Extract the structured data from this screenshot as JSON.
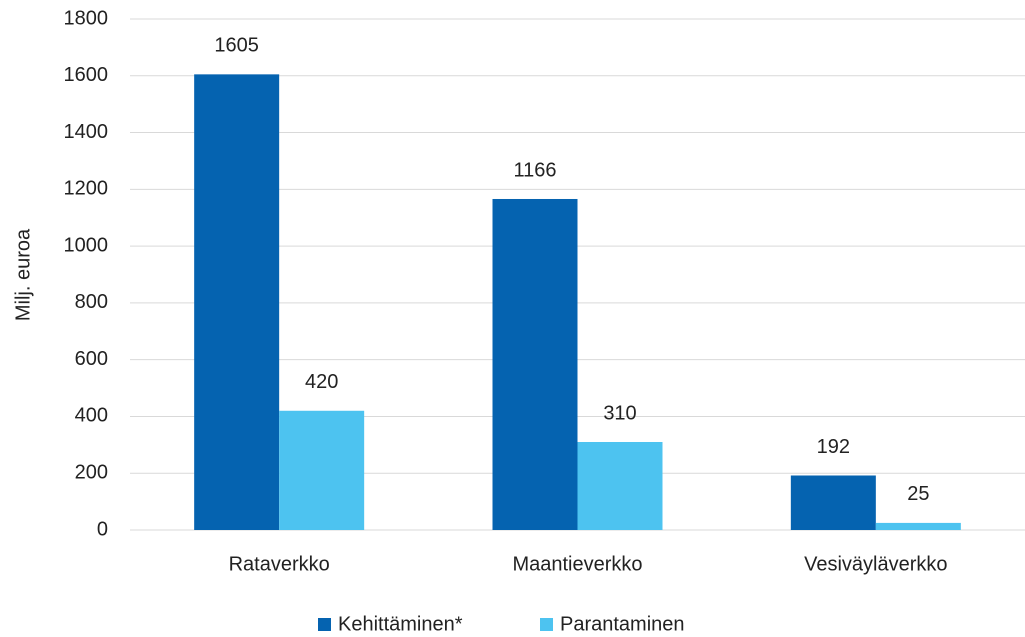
{
  "chart_data": {
    "type": "bar",
    "categories": [
      "Rataverkko",
      "Maantieverkko",
      "Vesiväyläverkko"
    ],
    "series": [
      {
        "name": "Kehittäminen*",
        "color": "#0563b0",
        "values": [
          1605,
          1166,
          192
        ]
      },
      {
        "name": "Parantaminen",
        "color": "#4dc3f0",
        "values": [
          420,
          310,
          25
        ]
      }
    ],
    "ylabel": "Milj. euroa",
    "ylim": [
      0,
      1800
    ],
    "yticks": [
      0,
      200,
      400,
      600,
      800,
      1000,
      1200,
      1400,
      1600,
      1800
    ],
    "grid": true,
    "legend": "bottom",
    "data_labels": true
  }
}
